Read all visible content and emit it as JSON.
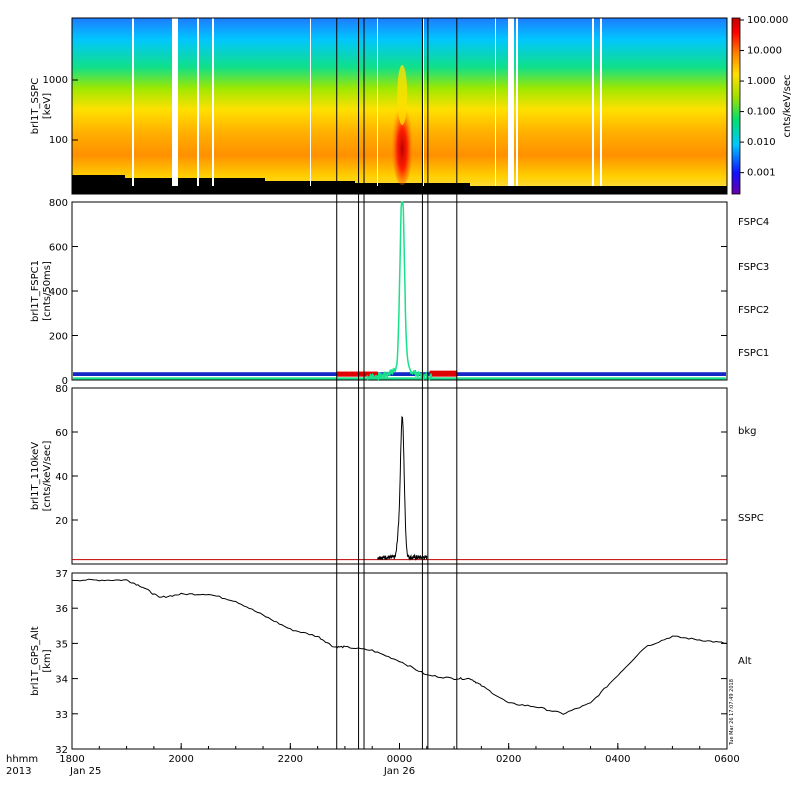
{
  "time_axis": {
    "ticks": [
      "1800",
      "2000",
      "2200",
      "0000",
      "0200",
      "0400",
      "0600"
    ],
    "dates": [
      "Jan 25",
      "Jan 26"
    ],
    "corner_top": "hhmm",
    "corner_bottom": "2013",
    "range_hours": [
      18,
      30
    ]
  },
  "event_markers_hours": [
    22.85,
    23.25,
    23.35,
    24.42,
    24.52,
    25.05
  ],
  "footer_stamp": "Tue Mar 26 17:07:49 2018",
  "colorbar": {
    "label": "cnts/keV/sec",
    "ticks": [
      "100.000",
      "10.000",
      "1.000",
      "0.100",
      "0.010",
      "0.001"
    ],
    "colors": [
      "#6a00a8",
      "#1010ff",
      "#00c8ff",
      "#00e070",
      "#a0e000",
      "#ffe000",
      "#ff8000",
      "#ff0000",
      "#c00000"
    ]
  },
  "chart_data": [
    {
      "type": "heatmap",
      "ylabel": "brl1T_SSPC",
      "yunit": "[keV]",
      "ytick_labels": [
        "1000",
        "100"
      ],
      "peak_hour": 24.05
    },
    {
      "type": "line",
      "ylabel": "brl1T_FSPC1",
      "yunit": "[cnts/50ms]",
      "ylim": [
        0,
        800
      ],
      "ytick_labels": [
        "800",
        "600",
        "400",
        "200",
        "0"
      ],
      "series": [
        {
          "name": "FSPC4",
          "color": "#000000"
        },
        {
          "name": "FSPC3",
          "color": "#e00000"
        },
        {
          "name": "FSPC2",
          "color": "#19e08a"
        },
        {
          "name": "FSPC1",
          "color": "#1428c8"
        }
      ],
      "peak": {
        "x": 24.05,
        "y": 800
      }
    },
    {
      "type": "line",
      "ylabel": "brl1T_110keV",
      "yunit": "[cnts/keV/sec]",
      "ylim": [
        0,
        80
      ],
      "ytick_labels": [
        "80",
        "60",
        "40",
        "20"
      ],
      "series": [
        {
          "name": "bkg",
          "color": "#c00000"
        },
        {
          "name": "SSPC",
          "color": "#000000"
        }
      ],
      "baseline": 2,
      "peak": {
        "x": 24.05,
        "y": 66
      }
    },
    {
      "type": "line",
      "ylabel": "brl1T_GPS_Alt",
      "yunit": "[km]",
      "ylim": [
        32,
        37
      ],
      "ytick_labels": [
        "37",
        "36",
        "35",
        "34",
        "33",
        "32"
      ],
      "series": [
        {
          "name": "Alt",
          "color": "#000000"
        }
      ],
      "x": [
        18.0,
        18.5,
        19.0,
        19.3,
        19.6,
        20.0,
        20.5,
        21.0,
        21.5,
        22.0,
        22.5,
        22.8,
        23.0,
        23.5,
        24.0,
        24.5,
        25.0,
        25.3,
        25.5,
        26.0,
        26.5,
        27.0,
        27.5,
        28.0,
        28.5,
        29.0,
        29.5,
        30.0
      ],
      "y": [
        36.8,
        36.8,
        36.8,
        36.6,
        36.3,
        36.4,
        36.4,
        36.2,
        35.8,
        35.4,
        35.2,
        34.9,
        34.9,
        34.8,
        34.5,
        34.1,
        34.0,
        34.0,
        33.8,
        33.3,
        33.2,
        33.0,
        33.3,
        34.1,
        34.9,
        35.2,
        35.1,
        35.0
      ]
    }
  ]
}
